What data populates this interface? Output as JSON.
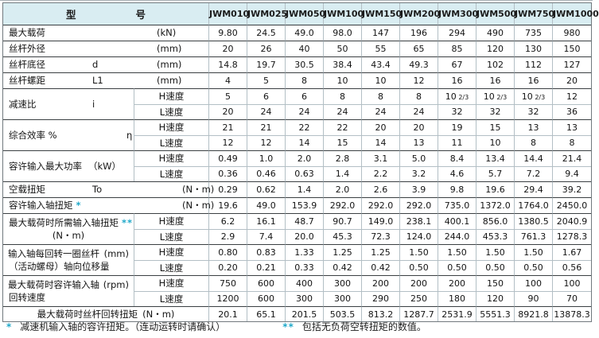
{
  "table": {
    "model_header": {
      "left": "型",
      "right": "号"
    },
    "columns": [
      "JWM010",
      "JWM025",
      "JWM050",
      "JWM100",
      "JWM150",
      "JWM200",
      "JWM300",
      "JWM500",
      "JWM750",
      "JWM1000"
    ],
    "rows": [
      {
        "name": "最大载荷",
        "unit": "(kN)",
        "values": [
          "9.80",
          "24.5",
          "49.0",
          "98.0",
          "147",
          "196",
          "294",
          "490",
          "735",
          "980"
        ]
      },
      {
        "name": "丝杆外径",
        "unit": "(mm)",
        "values": [
          "20",
          "26",
          "40",
          "50",
          "55",
          "65",
          "85",
          "120",
          "130",
          "150"
        ]
      },
      {
        "name": "丝杆底径",
        "symbol": "d",
        "unit": "(mm)",
        "values": [
          "14.8",
          "19.7",
          "30.5",
          "38.4",
          "43.4",
          "49.3",
          "67",
          "102",
          "112",
          "127"
        ]
      },
      {
        "name": "丝杆螺距",
        "symbol": "L1",
        "unit": "(mm)",
        "values": [
          "4",
          "5",
          "8",
          "10",
          "10",
          "12",
          "16",
          "16",
          "16",
          "20"
        ]
      },
      {
        "name": "减速比",
        "symbol": "i",
        "speed": "H速度",
        "values": [
          "5",
          "6",
          "6",
          "8",
          "8",
          "8",
          "10 2/3",
          "10 2/3",
          "10 2/3",
          "12"
        ]
      },
      {
        "speed": "L速度",
        "values": [
          "20",
          "24",
          "24",
          "24",
          "24",
          "24",
          "32",
          "32",
          "32",
          "36"
        ]
      },
      {
        "name": "综合效率 %",
        "symbol": "η",
        "speed": "H速度",
        "values": [
          "21",
          "21",
          "22",
          "22",
          "20",
          "20",
          "19",
          "15",
          "13",
          "13"
        ]
      },
      {
        "speed": "L速度",
        "values": [
          "12",
          "12",
          "14",
          "15",
          "14",
          "13",
          "11",
          "10",
          "8",
          "8"
        ]
      },
      {
        "name": "容许输入最大功率",
        "unit": "（kW）",
        "speed": "H速度",
        "values": [
          "0.49",
          "1.0",
          "2.0",
          "2.8",
          "3.1",
          "5.0",
          "8.4",
          "13.4",
          "14.4",
          "21.4"
        ]
      },
      {
        "speed": "L速度",
        "values": [
          "0.36",
          "0.46",
          "0.63",
          "1.4",
          "2.2",
          "3.2",
          "4.6",
          "5.7",
          "7.2",
          "9.4"
        ]
      },
      {
        "name": "空载扭矩",
        "symbol": "To",
        "unit": "(N・m)",
        "values": [
          "0.29",
          "0.62",
          "1.4",
          "2.0",
          "2.6",
          "3.9",
          "9.8",
          "19.6",
          "29.4",
          "39.2"
        ]
      },
      {
        "name": "容许输入轴扭矩",
        "star": "*",
        "unit": "(N・m)",
        "values": [
          "19.6",
          "49.0",
          "153.9",
          "292.0",
          "292.0",
          "292.0",
          "735.0",
          "1372.0",
          "1764.0",
          "2450.0"
        ]
      },
      {
        "name": "最大载荷时所需输入轴扭矩",
        "star": "**",
        "name2": "(N・m)",
        "speed": "H速度",
        "values": [
          "6.2",
          "16.1",
          "48.7",
          "90.7",
          "149.0",
          "238.1",
          "400.1",
          "856.0",
          "1380.5",
          "2040.9"
        ]
      },
      {
        "speed": "L速度",
        "values": [
          "2.9",
          "7.4",
          "20.0",
          "45.3",
          "72.3",
          "124.0",
          "244.0",
          "453.3",
          "761.3",
          "1278.3"
        ]
      },
      {
        "name": "输入轴每回转一圈丝杆",
        "unit": "(mm)",
        "name2": "（活动螺母）轴向位移量",
        "speed": "H速度",
        "values": [
          "0.80",
          "0.83",
          "1.33",
          "1.25",
          "1.25",
          "1.50",
          "1.50",
          "1.50",
          "1.50",
          "1.67"
        ]
      },
      {
        "speed": "L速度",
        "values": [
          "0.20",
          "0.21",
          "0.33",
          "0.42",
          "0.42",
          "0.50",
          "0.50",
          "0.50",
          "0.50",
          "0.56"
        ]
      },
      {
        "name": "最大载荷时容许输入轴",
        "unit": "(rpm)",
        "name2": "回转速度",
        "speed": "H速度",
        "values": [
          "750",
          "600",
          "400",
          "300",
          "200",
          "200",
          "200",
          "150",
          "100",
          "100"
        ]
      },
      {
        "speed": "L速度",
        "values": [
          "1200",
          "600",
          "300",
          "300",
          "290",
          "250",
          "180",
          "120",
          "90",
          "70"
        ]
      },
      {
        "name": "最大载荷时丝杆回转扭矩",
        "unit": "(N・m)",
        "values": [
          "20.1",
          "65.1",
          "201.5",
          "503.5",
          "813.2",
          "1287.7",
          "2531.9",
          "5551.3",
          "8921.8",
          "13878.3"
        ]
      }
    ]
  },
  "footnotes": [
    {
      "star": "*",
      "text": "减速机输入轴的容许扭矩。（连动运转时请确认）"
    },
    {
      "star": "**",
      "text": "包括无负荷空转扭矩的数值。"
    }
  ],
  "colors": {
    "header_bg": "#d9edf2",
    "accent_star": "#1fa8c9",
    "border_light": "#b3bfc5",
    "border_dark": "#3a3f42"
  }
}
